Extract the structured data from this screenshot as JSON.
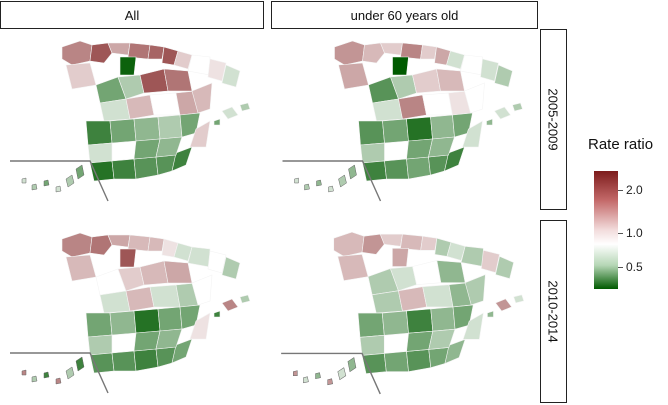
{
  "columns": [
    "All",
    "under 60 years old"
  ],
  "rows": [
    "2005-2009",
    "2010-2014"
  ],
  "legend": {
    "title": "Rate ratio",
    "ticks": [
      {
        "label": "2.0",
        "value": 2.0
      },
      {
        "label": "1.0",
        "value": 1.0
      },
      {
        "label": "0.5",
        "value": 0.5
      }
    ],
    "colors": {
      "high": "#7d1c1c",
      "neutral": "#ffffff",
      "low": "#005a00"
    }
  },
  "panels": [
    {
      "column": "All",
      "row": "2005-2009",
      "north": [
        1.6,
        1.9,
        1.4,
        1.7,
        0.2,
        1.8,
        1.9,
        1.2,
        1.0,
        1.1,
        0.9,
        1.2
      ],
      "center": [
        0.6,
        0.8,
        1.9,
        1.7,
        0.9,
        1.3,
        1.0,
        1.4,
        1.3
      ],
      "south": [
        0.4,
        0.6,
        0.7,
        0.8,
        0.6,
        0.9,
        1.2
      ],
      "far_south": [
        0.3,
        0.4,
        0.5,
        0.5,
        0.4,
        0.6,
        0.7
      ],
      "islands": [
        0.9,
        0.8,
        0.6
      ]
    },
    {
      "column": "under 60 years old",
      "row": "2005-2009",
      "north": [
        1.5,
        1.3,
        1.2,
        1.6,
        0.1,
        1.2,
        1.4,
        0.9,
        1.0,
        0.9,
        0.8,
        1.4
      ],
      "center": [
        0.5,
        0.8,
        1.2,
        1.3,
        0.9,
        1.6,
        1.0,
        1.1,
        1.0
      ],
      "south": [
        0.5,
        0.6,
        0.3,
        0.7,
        0.6,
        0.8,
        0.9
      ],
      "far_south": [
        0.4,
        0.5,
        0.6,
        0.5,
        0.4,
        0.6,
        0.7
      ],
      "islands": [
        0.9,
        0.8,
        0.7
      ]
    },
    {
      "column": "All",
      "row": "2010-2014",
      "north": [
        1.6,
        1.7,
        1.4,
        1.3,
        1.9,
        1.3,
        1.1,
        0.9,
        0.9,
        1.0,
        0.8,
        1.3
      ],
      "center": [
        1.0,
        1.2,
        1.3,
        1.4,
        0.9,
        1.3,
        0.9,
        0.8,
        1.0
      ],
      "south": [
        0.6,
        0.7,
        0.3,
        0.6,
        0.6,
        0.8,
        1.1
      ],
      "far_south": [
        0.5,
        0.5,
        0.4,
        0.5,
        0.6,
        0.6,
        0.7
      ],
      "islands": [
        1.6,
        0.8,
        0.4
      ]
    },
    {
      "column": "under 60 years old",
      "row": "2010-2014",
      "north": [
        1.3,
        1.5,
        1.2,
        1.3,
        1.4,
        1.2,
        0.8,
        0.9,
        0.8,
        1.2,
        0.8,
        1.3
      ],
      "center": [
        0.8,
        0.9,
        1.0,
        0.7,
        0.8,
        1.3,
        0.9,
        0.7,
        0.8
      ],
      "south": [
        0.6,
        0.7,
        0.4,
        0.7,
        0.6,
        0.8,
        0.9
      ],
      "far_south": [
        0.5,
        0.6,
        0.5,
        0.6,
        0.7,
        0.6,
        0.8
      ],
      "islands": [
        1.5,
        0.9,
        0.7
      ]
    }
  ]
}
